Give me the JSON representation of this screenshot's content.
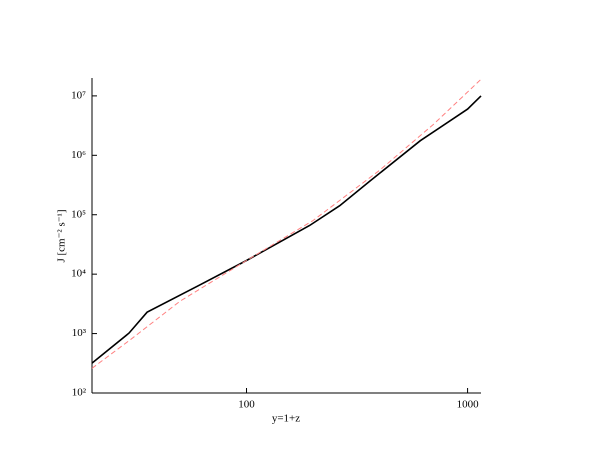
{
  "chart_data": {
    "type": "line",
    "x_label": "y=1+z",
    "y_label": "J  [cm⁻² s⁻¹]",
    "x_log": true,
    "y_log": true,
    "xlim": [
      20,
      1150
    ],
    "ylim": [
      100,
      20000000
    ],
    "xticks": [
      100,
      1000
    ],
    "yticks": [
      {
        "value": 100,
        "label": "10²"
      },
      {
        "value": 1000,
        "label": "10³"
      },
      {
        "value": 10000,
        "label": "10⁴"
      },
      {
        "value": 100000,
        "label": "10⁵"
      },
      {
        "value": 1000000,
        "label": "10⁶"
      },
      {
        "value": 10000000,
        "label": "10⁷"
      }
    ],
    "series": [
      {
        "color": "#000000",
        "dash": false,
        "x": [
          20,
          29.4,
          35.5,
          61,
          100,
          193,
          264,
          362,
          611,
          1000,
          1150
        ],
        "values": [
          318,
          1020,
          2290,
          6500,
          17000,
          66000,
          142000,
          370000,
          1760000,
          6000000,
          10000000
        ]
      },
      {
        "color": "#ff8080",
        "dash": true,
        "x": [
          20,
          30,
          50,
          100,
          200,
          400,
          700,
          1150
        ],
        "values": [
          260,
          800,
          3500,
          17000,
          80000,
          560000,
          3300000,
          19000000
        ]
      }
    ]
  }
}
